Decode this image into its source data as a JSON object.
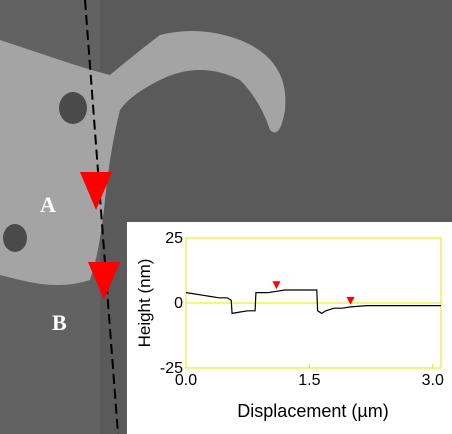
{
  "image_labels": [
    "A",
    "B"
  ],
  "chart_data": {
    "type": "line",
    "xlabel": "Displacement (µm)",
    "ylabel": "Height (nm)",
    "xlim": [
      0,
      3.1
    ],
    "ylim": [
      -25,
      25
    ],
    "xticks": [
      {
        "value": 0,
        "label": "0.0"
      },
      {
        "value": 1.5,
        "label": "1.5"
      },
      {
        "value": 3.0,
        "label": "3.0"
      }
    ],
    "yticks": [
      -25,
      0,
      25
    ],
    "frame_color": "#e8e800",
    "series": [
      {
        "color": "#000000",
        "x": [
          0,
          0.1,
          0.2,
          0.3,
          0.4,
          0.5,
          0.55,
          0.56,
          0.65,
          0.75,
          0.84,
          0.85,
          0.9,
          1.0,
          1.1,
          1.2,
          1.3,
          1.4,
          1.5,
          1.59,
          1.6,
          1.65,
          1.7,
          1.8,
          1.9,
          2.0,
          2.2,
          2.4,
          2.6,
          2.8,
          3.0,
          3.1
        ],
        "values": [
          4,
          3.5,
          3,
          2.5,
          2,
          2,
          1,
          -4,
          -3.5,
          -3,
          -3,
          4,
          4,
          4,
          4.5,
          5,
          5,
          5,
          5,
          5,
          -3,
          -4,
          -3,
          -2,
          -2,
          -1.5,
          -1,
          -1,
          -1,
          -1,
          -1,
          -1
        ]
      }
    ],
    "cursors": {
      "color": "#ff0000",
      "x": [
        1.1,
        2.0
      ],
      "values": [
        4.5,
        -1.5
      ]
    }
  }
}
